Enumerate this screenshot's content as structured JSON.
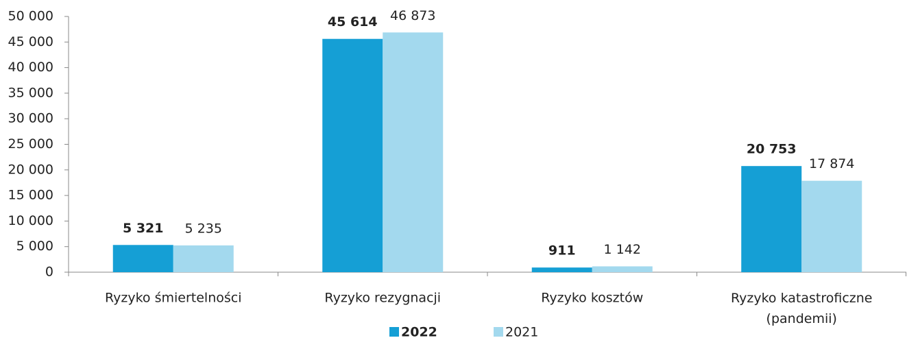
{
  "chart_data": {
    "type": "bar",
    "categories": [
      "Ryzyko śmiertelności",
      "Ryzyko rezygnacji",
      "Ryzyko kosztów",
      "Ryzyko katastroficzne (pandemii)"
    ],
    "series": [
      {
        "name": "2022",
        "color": "#159fd5",
        "values": [
          5321,
          45614,
          911,
          20753
        ],
        "value_labels": [
          "5 321",
          "45 614",
          "911",
          "20 753"
        ]
      },
      {
        "name": "2021",
        "color": "#a3d9ee",
        "values": [
          5235,
          46873,
          1142,
          17874
        ],
        "value_labels": [
          "5 235",
          "46 873",
          "1 142",
          "17 874"
        ]
      }
    ],
    "ylim": [
      0,
      50000
    ],
    "yticks": [
      0,
      {
        "value": 5000,
        "label": "5 000"
      },
      {
        "value": 10000,
        "label": "10 000"
      },
      {
        "value": 15000,
        "label": "15 000"
      },
      {
        "value": 20000,
        "label": "20 000"
      },
      {
        "value": 25000,
        "label": "25 000"
      },
      {
        "value": 30000,
        "label": "30 000"
      },
      {
        "value": 35000,
        "label": "35 000"
      },
      {
        "value": 40000,
        "label": "40 000"
      },
      {
        "value": 45000,
        "label": "45 000"
      },
      {
        "value": 50000,
        "label": "50 000"
      }
    ],
    "legend": "bottom"
  }
}
